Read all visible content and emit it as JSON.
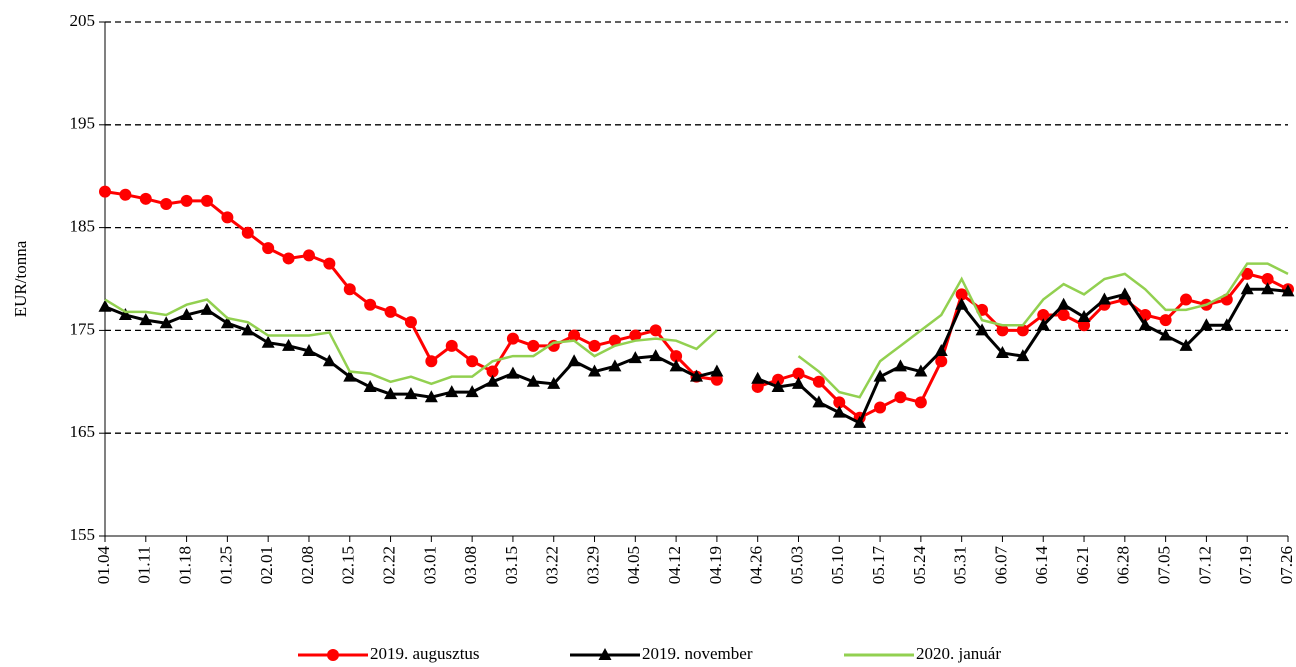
{
  "chart_data": {
    "type": "line",
    "y_label": "EUR/tonna",
    "categories": [
      "01.04",
      null,
      "01.11",
      null,
      "01.18",
      null,
      "01.25",
      null,
      "02.01",
      null,
      "02.08",
      null,
      "02.15",
      null,
      "02.22",
      null,
      "03.01",
      null,
      "03.08",
      null,
      "03.15",
      null,
      "03.22",
      null,
      "03.29",
      null,
      "04.05",
      null,
      "04.12",
      null,
      "04.19",
      null,
      "04.26",
      null,
      "05.03",
      null,
      "05.10",
      null,
      "05.17",
      null,
      "05.24",
      null,
      "05.31",
      null,
      "06.07",
      null,
      "06.14",
      null,
      "06.21",
      null,
      "06.28",
      null,
      "07.05",
      null,
      "07.12",
      null,
      "07.19",
      null,
      "07.26"
    ],
    "series": [
      {
        "name": "2019. augusztus",
        "color": "#ff0000",
        "marker": "circle",
        "values": [
          188.5,
          188.2,
          187.8,
          187.3,
          187.6,
          187.6,
          186,
          184.5,
          183,
          182,
          182.3,
          181.5,
          179,
          177.5,
          176.8,
          175.8,
          172,
          173.5,
          172,
          171,
          174.2,
          173.5,
          173.5,
          174.5,
          173.5,
          174,
          174.5,
          175,
          172.5,
          170.5,
          170.2,
          null,
          169.5,
          170.2,
          170.8,
          170,
          168,
          166.5,
          167.5,
          168.5,
          168,
          172,
          178.5,
          177,
          175,
          175,
          176.5,
          176.5,
          175.5,
          177.5,
          178,
          176.5,
          176,
          178,
          177.5,
          178,
          180.5,
          180,
          179
        ]
      },
      {
        "name": "2019. november",
        "color": "#000000",
        "marker": "triangle",
        "values": [
          177.3,
          176.5,
          176,
          175.7,
          176.5,
          177,
          175.7,
          175,
          173.8,
          173.5,
          173,
          172,
          170.5,
          169.5,
          168.8,
          168.8,
          168.5,
          169,
          169,
          170,
          170.8,
          170,
          169.8,
          172,
          171,
          171.5,
          172.3,
          172.5,
          171.5,
          170.5,
          171,
          null,
          170.3,
          169.5,
          169.8,
          168,
          167,
          166,
          170.5,
          171.5,
          171,
          173,
          177.5,
          175,
          172.8,
          172.5,
          175.5,
          177.5,
          176.3,
          178,
          178.5,
          175.5,
          174.5,
          173.5,
          175.5,
          175.5,
          179,
          179,
          178.8
        ]
      },
      {
        "name": "2020. január",
        "color": "#92d050",
        "marker": "none",
        "values": [
          178,
          176.8,
          176.8,
          176.5,
          177.5,
          178,
          176.2,
          175.8,
          174.5,
          174.5,
          174.5,
          174.8,
          171,
          170.8,
          170,
          170.5,
          169.8,
          170.5,
          170.5,
          172,
          172.5,
          172.5,
          173.8,
          174,
          172.5,
          173.5,
          174,
          174.2,
          174,
          173.2,
          175,
          null,
          172,
          null,
          172.5,
          171,
          169,
          168.5,
          172,
          173.5,
          175,
          176.5,
          180,
          176,
          175.5,
          175.5,
          178,
          179.5,
          178.5,
          180,
          180.5,
          179,
          177,
          177,
          177.5,
          178.5,
          181.5,
          181.5,
          180.5
        ]
      }
    ],
    "ylim": [
      155,
      205
    ],
    "yticks": [
      155,
      165,
      175,
      185,
      195,
      205
    ],
    "grid": true,
    "legend": "bottom"
  }
}
